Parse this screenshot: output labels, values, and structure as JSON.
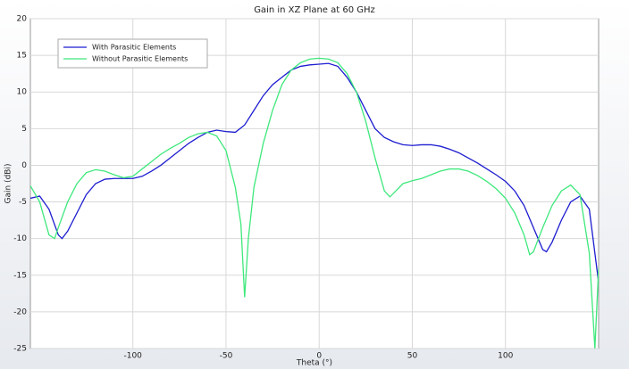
{
  "chart_data": {
    "type": "line",
    "title": "Gain in XZ Plane at 60 GHz",
    "x_label": "Theta (°)",
    "y_label": "Gain (dBi)",
    "xlim": [
      -155,
      150
    ],
    "ylim": [
      -25,
      20
    ],
    "xticks": [
      -100,
      -50,
      0,
      50,
      100
    ],
    "yticks": [
      -25,
      -20,
      -15,
      -10,
      -5,
      0,
      5,
      10,
      15,
      20
    ],
    "grid": true,
    "legend": "upper left",
    "series": [
      {
        "name": "With Parasitic Elements",
        "color": "#1c1cd0",
        "x": [
          -155,
          -150,
          -145,
          -140,
          -138,
          -135,
          -130,
          -125,
          -120,
          -115,
          -110,
          -105,
          -100,
          -95,
          -90,
          -85,
          -80,
          -75,
          -70,
          -65,
          -60,
          -55,
          -50,
          -45,
          -40,
          -35,
          -30,
          -25,
          -20,
          -15,
          -10,
          -5,
          0,
          5,
          10,
          15,
          20,
          25,
          30,
          35,
          40,
          45,
          50,
          55,
          60,
          65,
          70,
          75,
          80,
          85,
          90,
          95,
          100,
          105,
          110,
          115,
          120,
          122,
          125,
          130,
          135,
          140,
          145,
          150
        ],
        "values": [
          -4.5,
          -4.2,
          -6,
          -9.5,
          -10,
          -9,
          -6.5,
          -4,
          -2.5,
          -1.9,
          -1.8,
          -1.8,
          -1.8,
          -1.5,
          -0.8,
          0,
          1,
          2,
          3,
          3.8,
          4.5,
          4.8,
          4.6,
          4.5,
          5.5,
          7.5,
          9.5,
          11,
          12,
          13,
          13.5,
          13.7,
          13.8,
          13.9,
          13.5,
          12,
          10,
          7.5,
          5,
          3.8,
          3.2,
          2.8,
          2.7,
          2.8,
          2.8,
          2.6,
          2.2,
          1.7,
          1,
          0.3,
          -0.5,
          -1.3,
          -2.2,
          -3.5,
          -5.5,
          -8.5,
          -11.5,
          -11.8,
          -10.5,
          -7.5,
          -5,
          -4.2,
          -6,
          -16
        ]
      },
      {
        "name": "Without Parasitic Elements",
        "color": "#3ee87c",
        "x": [
          -155,
          -150,
          -145,
          -142,
          -140,
          -135,
          -130,
          -125,
          -120,
          -115,
          -110,
          -105,
          -100,
          -95,
          -90,
          -85,
          -80,
          -75,
          -70,
          -65,
          -60,
          -55,
          -50,
          -45,
          -42,
          -40,
          -38,
          -35,
          -30,
          -25,
          -20,
          -15,
          -10,
          -5,
          0,
          5,
          10,
          15,
          20,
          25,
          30,
          35,
          38,
          40,
          45,
          50,
          55,
          60,
          65,
          70,
          75,
          80,
          85,
          90,
          95,
          100,
          105,
          110,
          113,
          115,
          120,
          125,
          130,
          135,
          140,
          145,
          148,
          150
        ],
        "values": [
          -2.8,
          -5,
          -9.5,
          -10,
          -8.5,
          -5,
          -2.5,
          -1,
          -0.6,
          -0.8,
          -1.3,
          -1.7,
          -1.5,
          -0.5,
          0.5,
          1.5,
          2.3,
          3,
          3.8,
          4.3,
          4.5,
          4,
          2,
          -3,
          -8,
          -18,
          -10,
          -3,
          3,
          7.5,
          11,
          13,
          14,
          14.5,
          14.6,
          14.5,
          14,
          12.5,
          10,
          6,
          1,
          -3.5,
          -4.3,
          -3.8,
          -2.5,
          -2.1,
          -1.8,
          -1.3,
          -0.8,
          -0.5,
          -0.5,
          -0.8,
          -1.4,
          -2.2,
          -3.2,
          -4.5,
          -6.5,
          -9.5,
          -12.2,
          -11.8,
          -8.5,
          -5.5,
          -3.5,
          -2.7,
          -4,
          -12,
          -25,
          -14
        ]
      }
    ]
  }
}
